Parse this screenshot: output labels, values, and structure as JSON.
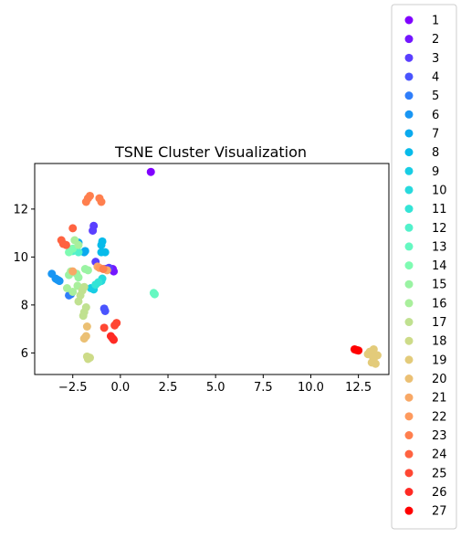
{
  "chart_data": {
    "type": "scatter",
    "title": "TSNE Cluster Visualization",
    "xlabel": "",
    "ylabel": "",
    "xlim": [
      -4.5,
      14.1
    ],
    "ylim": [
      5.1,
      13.9
    ],
    "xticks": [
      -2.5,
      0.0,
      2.5,
      5.0,
      7.5,
      10.0,
      12.5
    ],
    "xtick_labels": [
      "−2.5",
      "0.0",
      "2.5",
      "5.0",
      "7.5",
      "10.0",
      "12.5"
    ],
    "yticks": [
      6,
      8,
      10,
      12
    ],
    "ytick_labels": [
      "6",
      "8",
      "10",
      "12"
    ],
    "grid": false,
    "legend_position": "outside right",
    "series": [
      {
        "name": "1",
        "color": "#8000ff",
        "points": [
          [
            1.6,
            13.55
          ]
        ]
      },
      {
        "name": "2",
        "color": "#7316ff",
        "points": [
          [
            -0.4,
            9.5
          ],
          [
            -0.35,
            9.4
          ]
        ]
      },
      {
        "name": "3",
        "color": "#5a3fff",
        "points": [
          [
            -1.4,
            11.3
          ],
          [
            -1.45,
            11.1
          ],
          [
            -1.3,
            9.8
          ],
          [
            -0.6,
            9.55
          ],
          [
            -0.8,
            9.5
          ]
        ]
      },
      {
        "name": "4",
        "color": "#4a54fe",
        "points": [
          [
            -0.85,
            7.85
          ],
          [
            -0.8,
            7.75
          ]
        ]
      },
      {
        "name": "5",
        "color": "#2f7efa",
        "points": [
          [
            -2.6,
            8.45
          ],
          [
            -2.7,
            8.4
          ]
        ]
      },
      {
        "name": "6",
        "color": "#1996f3",
        "points": [
          [
            -3.6,
            9.3
          ],
          [
            -3.4,
            9.1
          ],
          [
            -3.2,
            9.0
          ],
          [
            -3.3,
            9.05
          ]
        ]
      },
      {
        "name": "7",
        "color": "#0aaaee",
        "points": [
          [
            -2.2,
            10.6
          ],
          [
            -1.9,
            10.2
          ],
          [
            -1.85,
            10.25
          ]
        ]
      },
      {
        "name": "8",
        "color": "#07bbea",
        "points": [
          [
            -0.95,
            10.65
          ],
          [
            -1.0,
            10.5
          ],
          [
            -0.8,
            10.2
          ],
          [
            -1.0,
            10.2
          ]
        ]
      },
      {
        "name": "9",
        "color": "#18cde4",
        "points": [
          [
            -1.55,
            8.7
          ],
          [
            -1.4,
            8.65
          ]
        ]
      },
      {
        "name": "10",
        "color": "#28d9dd",
        "points": [
          [
            -1.0,
            9.0
          ],
          [
            -0.95,
            9.1
          ]
        ]
      },
      {
        "name": "11",
        "color": "#34e4d6",
        "points": [
          [
            -1.3,
            8.85
          ],
          [
            -1.15,
            8.95
          ]
        ]
      },
      {
        "name": "12",
        "color": "#52f1cb",
        "points": [
          [
            -2.5,
            10.25
          ],
          [
            -2.2,
            10.2
          ]
        ]
      },
      {
        "name": "13",
        "color": "#65f8c1",
        "points": [
          [
            1.75,
            8.5
          ],
          [
            1.8,
            8.45
          ]
        ]
      },
      {
        "name": "14",
        "color": "#7ffbb2",
        "points": [
          [
            -2.7,
            10.2
          ],
          [
            -2.5,
            10.35
          ]
        ]
      },
      {
        "name": "15",
        "color": "#9af3a3",
        "points": [
          [
            -2.2,
            9.15
          ],
          [
            -2.3,
            9.3
          ],
          [
            -2.7,
            9.25
          ],
          [
            -1.85,
            9.5
          ],
          [
            -1.7,
            9.45
          ]
        ]
      },
      {
        "name": "16",
        "color": "#a9ef9c",
        "points": [
          [
            -2.8,
            8.7
          ],
          [
            -2.5,
            8.55
          ],
          [
            -2.25,
            8.8
          ],
          [
            -2.4,
            10.7
          ],
          [
            -2.2,
            10.5
          ],
          [
            -2.6,
            9.4
          ]
        ]
      },
      {
        "name": "17",
        "color": "#c0e190",
        "points": [
          [
            -1.9,
            8.75
          ],
          [
            -2.0,
            8.6
          ],
          [
            -2.1,
            8.4
          ],
          [
            -2.2,
            8.15
          ],
          [
            -1.8,
            7.9
          ],
          [
            -1.9,
            7.7
          ],
          [
            -1.95,
            7.55
          ]
        ]
      },
      {
        "name": "18",
        "color": "#cddb88",
        "points": [
          [
            -1.75,
            5.85
          ],
          [
            -1.7,
            5.75
          ],
          [
            -1.6,
            5.8
          ]
        ]
      },
      {
        "name": "19",
        "color": "#e3cb7a",
        "points": [
          [
            13.1,
            6.05
          ],
          [
            13.3,
            6.15
          ],
          [
            13.5,
            5.9
          ],
          [
            13.2,
            5.6
          ],
          [
            13.4,
            5.55
          ],
          [
            13.3,
            5.75
          ],
          [
            13.0,
            5.95
          ],
          [
            13.25,
            5.85
          ]
        ]
      },
      {
        "name": "20",
        "color": "#ebc074",
        "points": [
          [
            -1.75,
            7.1
          ],
          [
            -1.9,
            6.6
          ],
          [
            -1.8,
            6.7
          ]
        ]
      },
      {
        "name": "21",
        "color": "#f8a866",
        "points": [
          [
            -1.2,
            9.6
          ],
          [
            -2.5,
            9.4
          ],
          [
            -0.7,
            9.45
          ]
        ]
      },
      {
        "name": "22",
        "color": "#fe9a5e",
        "points": [
          [
            -1.1,
            9.55
          ]
        ]
      },
      {
        "name": "23",
        "color": "#ff7f4e",
        "points": [
          [
            -1.8,
            12.3
          ],
          [
            -1.7,
            12.45
          ],
          [
            -1.6,
            12.55
          ],
          [
            -1.1,
            12.45
          ],
          [
            -1.0,
            12.3
          ],
          [
            -0.9,
            9.5
          ]
        ]
      },
      {
        "name": "24",
        "color": "#ff6341",
        "points": [
          [
            -3.1,
            10.7
          ],
          [
            -3.0,
            10.55
          ],
          [
            -2.85,
            10.5
          ],
          [
            -2.5,
            11.2
          ]
        ]
      },
      {
        "name": "25",
        "color": "#ff4733",
        "points": [
          [
            -0.3,
            7.15
          ],
          [
            -0.2,
            7.25
          ],
          [
            -0.85,
            7.05
          ]
        ]
      },
      {
        "name": "26",
        "color": "#ff2a24",
        "points": [
          [
            -0.5,
            6.7
          ],
          [
            -0.4,
            6.6
          ],
          [
            -0.35,
            6.55
          ]
        ]
      },
      {
        "name": "27",
        "color": "#ff0000",
        "points": [
          [
            12.3,
            6.15
          ],
          [
            12.5,
            6.1
          ],
          [
            12.4,
            6.12
          ]
        ]
      }
    ]
  }
}
